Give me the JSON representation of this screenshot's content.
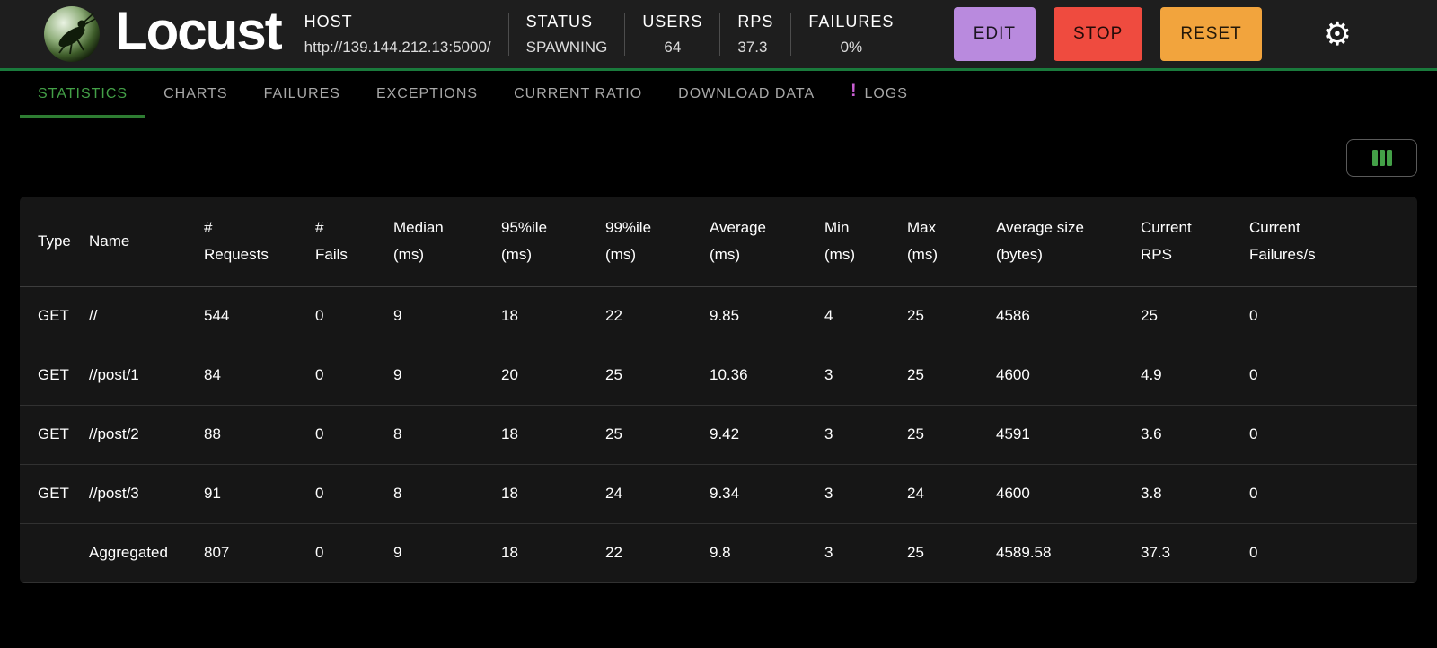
{
  "colors": {
    "edit_button": "#b98ade",
    "stop_button": "#ef4b3f",
    "reset_button": "#f2a43d",
    "accent_green": "#43a047",
    "underline_green": "#2e7d32",
    "badge_purple": "#c95fd4",
    "header_border_green": "#1a7a3c"
  },
  "icons": {
    "gear": "⚙",
    "logo": "locust-mascot",
    "column_selector": "column-bars"
  },
  "header": {
    "app_name": "Locust",
    "host": {
      "label": "HOST",
      "value": "http://139.144.212.13:5000/"
    },
    "stats": [
      {
        "label": "STATUS",
        "value": "SPAWNING"
      },
      {
        "label": "USERS",
        "value": "64"
      },
      {
        "label": "RPS",
        "value": "37.3"
      },
      {
        "label": "FAILURES",
        "value": "0%"
      }
    ],
    "buttons": {
      "edit": "EDIT",
      "stop": "STOP",
      "reset": "RESET"
    }
  },
  "tabs": [
    {
      "label": "STATISTICS",
      "active": true
    },
    {
      "label": "CHARTS",
      "active": false
    },
    {
      "label": "FAILURES",
      "active": false
    },
    {
      "label": "EXCEPTIONS",
      "active": false
    },
    {
      "label": "CURRENT RATIO",
      "active": false
    },
    {
      "label": "DOWNLOAD DATA",
      "active": false
    },
    {
      "label": "LOGS",
      "active": false,
      "badge": "!"
    }
  ],
  "table": {
    "columns": [
      {
        "line1": "Type",
        "line2": ""
      },
      {
        "line1": "Name",
        "line2": ""
      },
      {
        "line1": "#",
        "line2": "Requests"
      },
      {
        "line1": "#",
        "line2": "Fails"
      },
      {
        "line1": "Median",
        "line2": "(ms)"
      },
      {
        "line1": "95%ile",
        "line2": "(ms)"
      },
      {
        "line1": "99%ile",
        "line2": "(ms)"
      },
      {
        "line1": "Average",
        "line2": "(ms)"
      },
      {
        "line1": "Min",
        "line2": "(ms)"
      },
      {
        "line1": "Max",
        "line2": "(ms)"
      },
      {
        "line1": "Average size",
        "line2": "(bytes)"
      },
      {
        "line1": "Current",
        "line2": "RPS"
      },
      {
        "line1": "Current",
        "line2": "Failures/s"
      }
    ],
    "rows": [
      [
        "GET",
        "//",
        "544",
        "0",
        "9",
        "18",
        "22",
        "9.85",
        "4",
        "25",
        "4586",
        "25",
        "0"
      ],
      [
        "GET",
        "//post/1",
        "84",
        "0",
        "9",
        "20",
        "25",
        "10.36",
        "3",
        "25",
        "4600",
        "4.9",
        "0"
      ],
      [
        "GET",
        "//post/2",
        "88",
        "0",
        "8",
        "18",
        "25",
        "9.42",
        "3",
        "25",
        "4591",
        "3.6",
        "0"
      ],
      [
        "GET",
        "//post/3",
        "91",
        "0",
        "8",
        "18",
        "24",
        "9.34",
        "3",
        "24",
        "4600",
        "3.8",
        "0"
      ],
      [
        "",
        "Aggregated",
        "807",
        "0",
        "9",
        "18",
        "22",
        "9.8",
        "3",
        "25",
        "4589.58",
        "37.3",
        "0"
      ]
    ]
  }
}
